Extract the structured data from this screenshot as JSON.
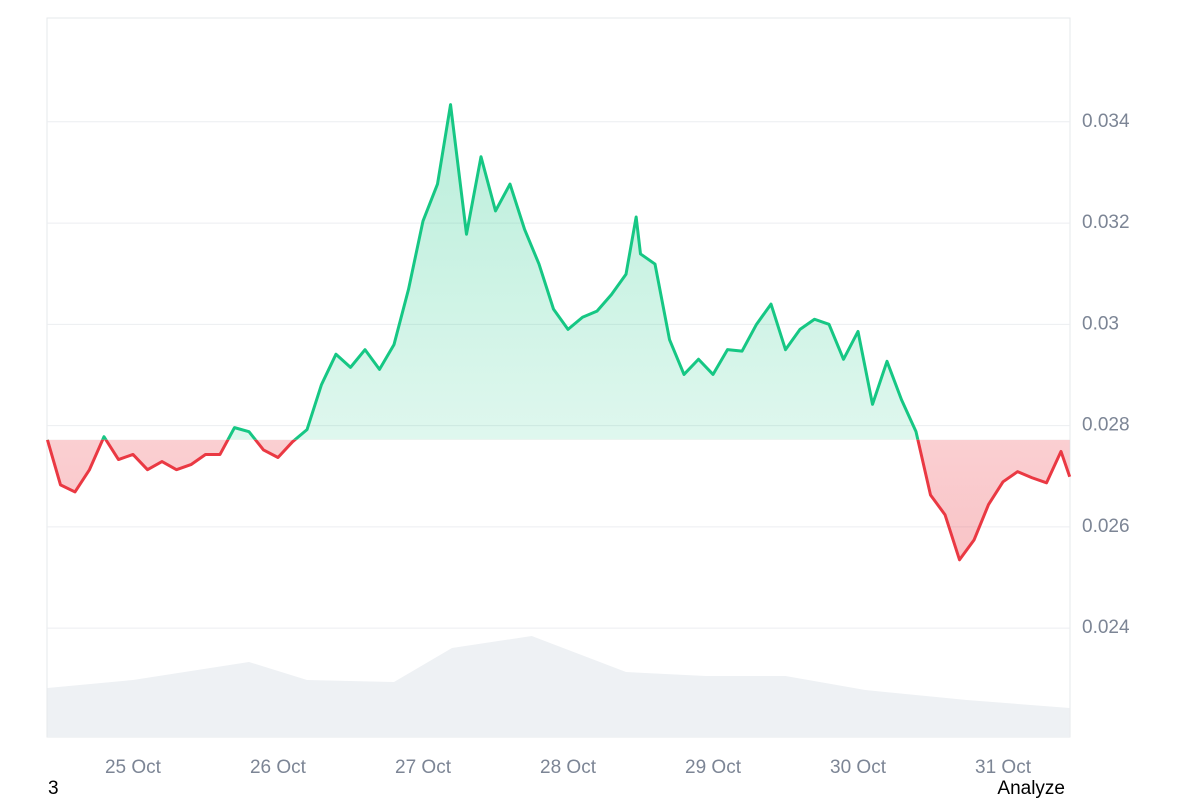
{
  "chart_data": {
    "type": "line",
    "x": [
      24.41,
      24.5,
      24.6,
      24.7,
      24.8,
      24.9,
      25.0,
      25.1,
      25.2,
      25.3,
      25.4,
      25.5,
      25.6,
      25.7,
      25.8,
      25.9,
      26.0,
      26.1,
      26.2,
      26.3,
      26.4,
      26.5,
      26.6,
      26.7,
      26.8,
      26.9,
      27.0,
      27.1,
      27.19,
      27.3,
      27.4,
      27.5,
      27.6,
      27.7,
      27.8,
      27.9,
      28.0,
      28.1,
      28.2,
      28.3,
      28.4,
      28.47,
      28.5,
      28.6,
      28.7,
      28.8,
      28.9,
      29.0,
      29.1,
      29.2,
      29.3,
      29.4,
      29.5,
      29.6,
      29.7,
      29.8,
      29.9,
      30.0,
      30.1,
      30.2,
      30.3,
      30.4,
      30.5,
      30.6,
      30.7,
      30.8,
      30.9,
      31.0,
      31.1,
      31.2,
      31.3,
      31.4,
      31.46
    ],
    "series": [
      {
        "values": [
          0.02772,
          0.02683,
          0.02669,
          0.02713,
          0.02778,
          0.02733,
          0.02743,
          0.02713,
          0.02729,
          0.02713,
          0.02723,
          0.02743,
          0.02743,
          0.02796,
          0.02788,
          0.02752,
          0.02737,
          0.02768,
          0.02792,
          0.02881,
          0.02941,
          0.02915,
          0.0295,
          0.02911,
          0.0296,
          0.03069,
          0.03204,
          0.03277,
          0.03434,
          0.03178,
          0.03331,
          0.03224,
          0.03277,
          0.03188,
          0.03119,
          0.0303,
          0.0299,
          0.03014,
          0.03026,
          0.03059,
          0.03099,
          0.03212,
          0.03139,
          0.03119,
          0.0297,
          0.02901,
          0.02931,
          0.02901,
          0.0295,
          0.02947,
          0.03,
          0.0304,
          0.0295,
          0.0299,
          0.0301,
          0.03,
          0.02931,
          0.02986,
          0.02842,
          0.02927,
          0.02851,
          0.02788,
          0.02663,
          0.02624,
          0.02535,
          0.02574,
          0.02644,
          0.02689,
          0.02709,
          0.02697,
          0.02687,
          0.02749,
          0.02699
        ],
        "color_up": "#16c784",
        "color_down": "#ea3943"
      }
    ],
    "baseline": 0.02772,
    "volume": {
      "x": [
        24.41,
        25.0,
        25.8,
        26.2,
        26.8,
        27.2,
        27.75,
        28.4,
        28.95,
        29.5,
        30.05,
        30.75,
        31.46
      ],
      "values": [
        49,
        57,
        75,
        57,
        55,
        89,
        101,
        65,
        61,
        61,
        47,
        37,
        29
      ],
      "color": "#eef1f4"
    },
    "xlim": [
      24.407,
      31.462
    ],
    "ylim": [
      0.02185,
      0.03605
    ],
    "xticks": [
      {
        "value": 25,
        "label": "25 Oct"
      },
      {
        "value": 26,
        "label": "26 Oct"
      },
      {
        "value": 27,
        "label": "27 Oct"
      },
      {
        "value": 28,
        "label": "28 Oct"
      },
      {
        "value": 29,
        "label": "29 Oct"
      },
      {
        "value": 30,
        "label": "30 Oct"
      },
      {
        "value": 31,
        "label": "31 Oct"
      }
    ],
    "yticks": [
      0.024,
      0.026,
      0.028,
      0.03,
      0.032,
      0.034
    ],
    "grid": true
  },
  "footer": {
    "left": "3",
    "right": "Analyze"
  }
}
